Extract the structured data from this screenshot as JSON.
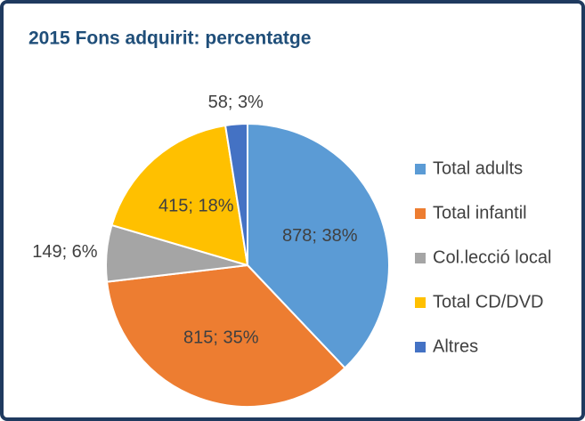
{
  "chart_data": {
    "type": "pie",
    "title": "2015 Fons adquirit: percentatge",
    "categories": [
      "Total adults",
      "Total infantil",
      "Col.lecció local",
      "Total CD/DVD",
      "Altres"
    ],
    "values": [
      878,
      815,
      149,
      415,
      58
    ],
    "value_labels": [
      "878; 38%",
      "815; 35%",
      "149; 6%",
      "415; 18%",
      "58; 3%"
    ],
    "colors": [
      "#5b9bd5",
      "#ed7d31",
      "#a5a5a5",
      "#ffc000",
      "#4472c4"
    ],
    "legend": "right"
  }
}
